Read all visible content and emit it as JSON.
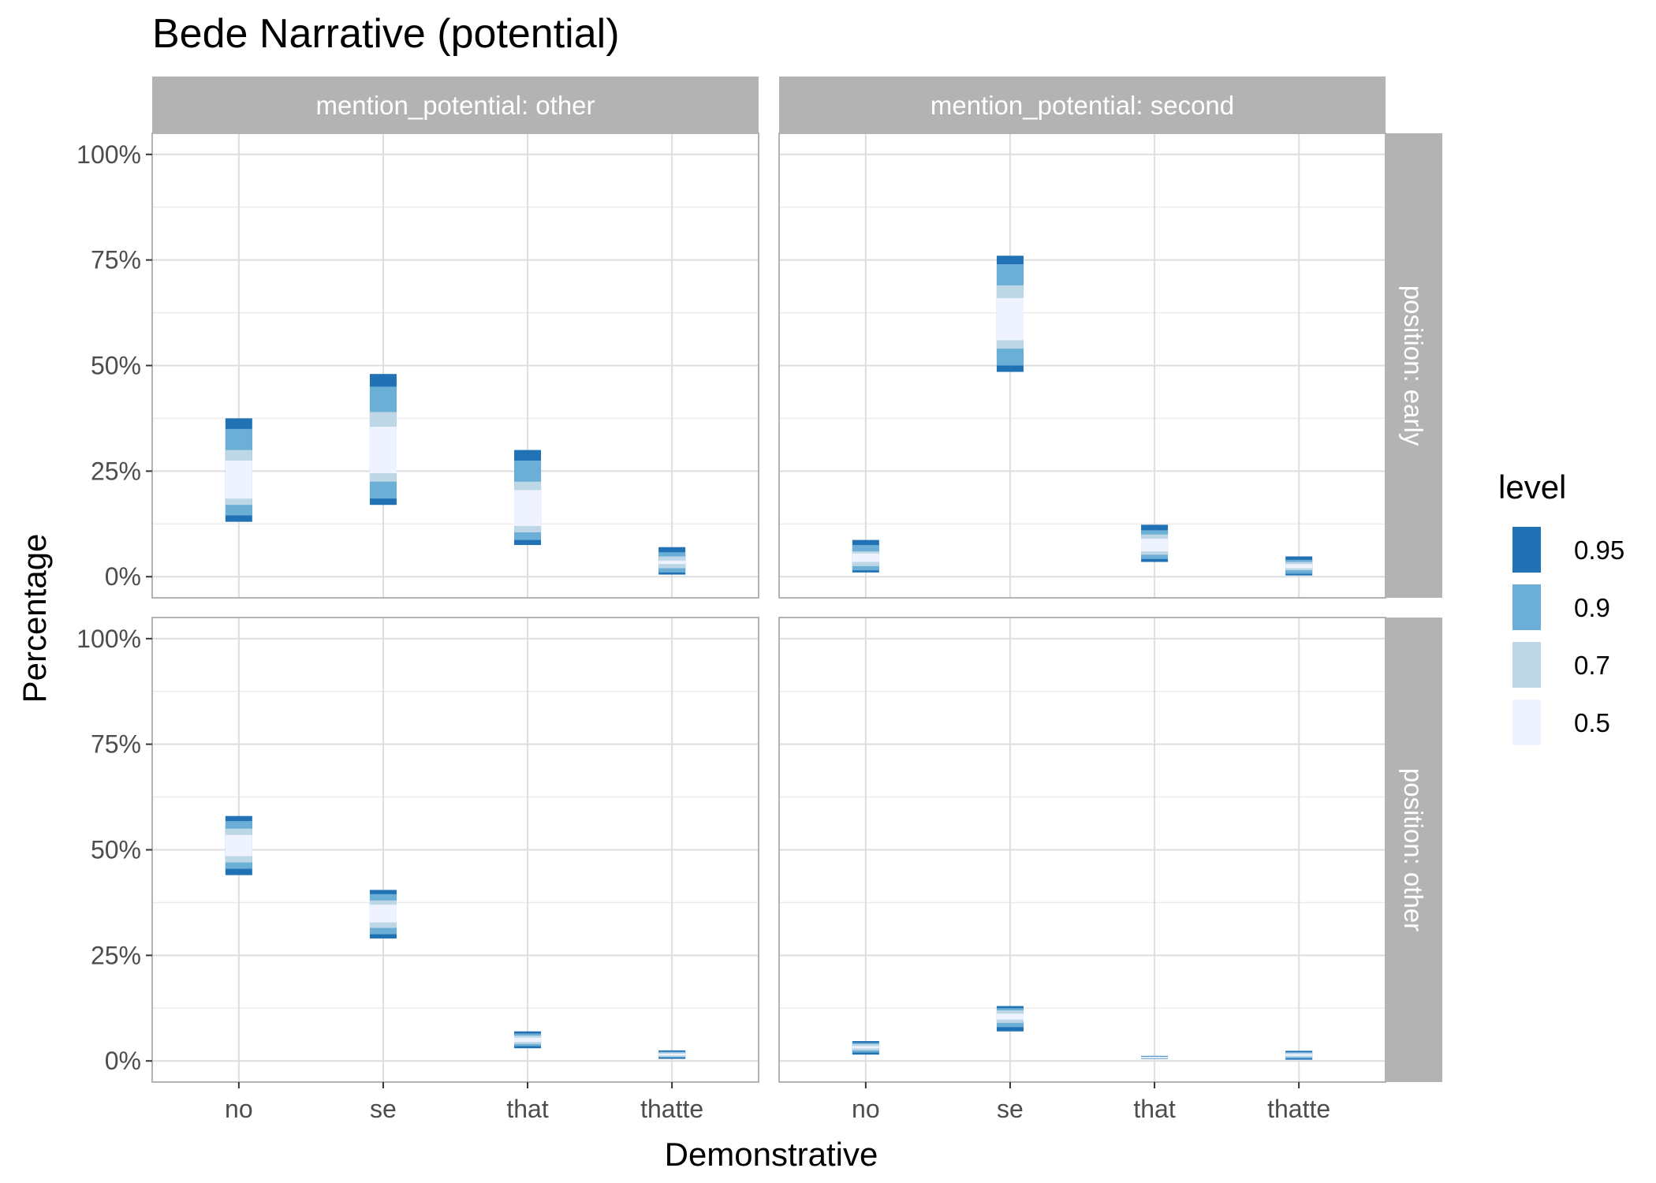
{
  "chart_data": {
    "type": "bar",
    "title": "Bede Narrative (potential)",
    "xlabel": "Demonstrative",
    "ylabel": "Percentage",
    "categories": [
      "no",
      "se",
      "that",
      "thatte"
    ],
    "ylim": [
      -5,
      105
    ],
    "yticks": [
      0,
      25,
      50,
      75,
      100
    ],
    "ytick_labels": [
      "0%",
      "25%",
      "50%",
      "75%",
      "100%"
    ],
    "grid": true,
    "legend": {
      "title": "level",
      "placement": "right",
      "items": [
        {
          "label": "0.95",
          "color": "#2171b5"
        },
        {
          "label": "0.9",
          "color": "#6baed6"
        },
        {
          "label": "0.7",
          "color": "#bdd7e7"
        },
        {
          "label": "0.5",
          "color": "#eff3ff"
        }
      ]
    },
    "facets": {
      "col_labels": [
        "mention_potential: other",
        "mention_potential: second"
      ],
      "row_labels": [
        "position: early",
        "position: other"
      ]
    },
    "panels": [
      {
        "row": 0,
        "col": 0,
        "intervals": [
          {
            "category": "no",
            "l95": 13.0,
            "l90": 14.5,
            "l70": 17.0,
            "l50": 18.5,
            "u50": 27.5,
            "u70": 30.0,
            "u90": 35.0,
            "u95": 37.5
          },
          {
            "category": "se",
            "l95": 17.0,
            "l90": 18.5,
            "l70": 22.5,
            "l50": 24.5,
            "u50": 35.5,
            "u70": 39.0,
            "u90": 45.0,
            "u95": 48.0
          },
          {
            "category": "that",
            "l95": 7.5,
            "l90": 8.7,
            "l70": 10.5,
            "l50": 12.0,
            "u50": 20.5,
            "u70": 22.5,
            "u90": 27.5,
            "u95": 30.0
          },
          {
            "category": "thatte",
            "l95": 0.5,
            "l90": 1.0,
            "l70": 2.0,
            "l50": 3.0,
            "u50": 3.8,
            "u70": 4.8,
            "u90": 5.8,
            "u95": 7.0
          }
        ]
      },
      {
        "row": 0,
        "col": 1,
        "intervals": [
          {
            "category": "no",
            "l95": 1.0,
            "l90": 1.5,
            "l70": 2.5,
            "l50": 3.5,
            "u50": 5.5,
            "u70": 6.0,
            "u90": 7.5,
            "u95": 8.7
          },
          {
            "category": "se",
            "l95": 48.5,
            "l90": 50.0,
            "l70": 54.0,
            "l50": 56.0,
            "u50": 66.0,
            "u70": 69.0,
            "u90": 74.0,
            "u95": 76.0
          },
          {
            "category": "that",
            "l95": 3.5,
            "l90": 4.2,
            "l70": 5.2,
            "l50": 6.0,
            "u50": 9.0,
            "u70": 10.0,
            "u90": 11.0,
            "u95": 12.3
          },
          {
            "category": "thatte",
            "l95": 0.3,
            "l90": 0.7,
            "l70": 1.5,
            "l50": 2.0,
            "u50": 3.0,
            "u70": 3.5,
            "u90": 4.0,
            "u95": 4.8
          }
        ]
      },
      {
        "row": 1,
        "col": 0,
        "intervals": [
          {
            "category": "no",
            "l95": 44.0,
            "l90": 45.5,
            "l70": 47.0,
            "l50": 48.5,
            "u50": 53.5,
            "u70": 55.0,
            "u90": 56.8,
            "u95": 58.0
          },
          {
            "category": "se",
            "l95": 29.0,
            "l90": 30.0,
            "l70": 31.5,
            "l50": 32.8,
            "u50": 37.0,
            "u70": 38.0,
            "u90": 39.5,
            "u95": 40.5
          },
          {
            "category": "that",
            "l95": 3.0,
            "l90": 3.5,
            "l70": 4.0,
            "l50": 4.5,
            "u50": 5.5,
            "u70": 6.0,
            "u90": 6.5,
            "u95": 7.0
          },
          {
            "category": "thatte",
            "l95": 0.5,
            "l90": 0.8,
            "l70": 1.0,
            "l50": 1.3,
            "u50": 1.7,
            "u70": 2.0,
            "u90": 2.2,
            "u95": 2.5
          }
        ]
      },
      {
        "row": 1,
        "col": 1,
        "intervals": [
          {
            "category": "no",
            "l95": 1.5,
            "l90": 2.0,
            "l70": 2.5,
            "l50": 3.0,
            "u50": 3.5,
            "u70": 4.0,
            "u90": 4.3,
            "u95": 4.7
          },
          {
            "category": "se",
            "l95": 7.0,
            "l90": 8.0,
            "l70": 9.0,
            "l50": 9.8,
            "u50": 11.2,
            "u70": 12.0,
            "u90": 12.5,
            "u95": 13.0
          },
          {
            "category": "that",
            "l95": 0.5,
            "l90": 0.6,
            "l70": 0.7,
            "l50": 0.8,
            "u50": 0.9,
            "u70": 1.0,
            "u90": 1.1,
            "u95": 1.2
          },
          {
            "category": "thatte",
            "l95": 0.3,
            "l90": 0.6,
            "l70": 0.9,
            "l50": 1.2,
            "u50": 1.6,
            "u70": 1.9,
            "u90": 2.1,
            "u95": 2.4
          }
        ]
      }
    ]
  }
}
